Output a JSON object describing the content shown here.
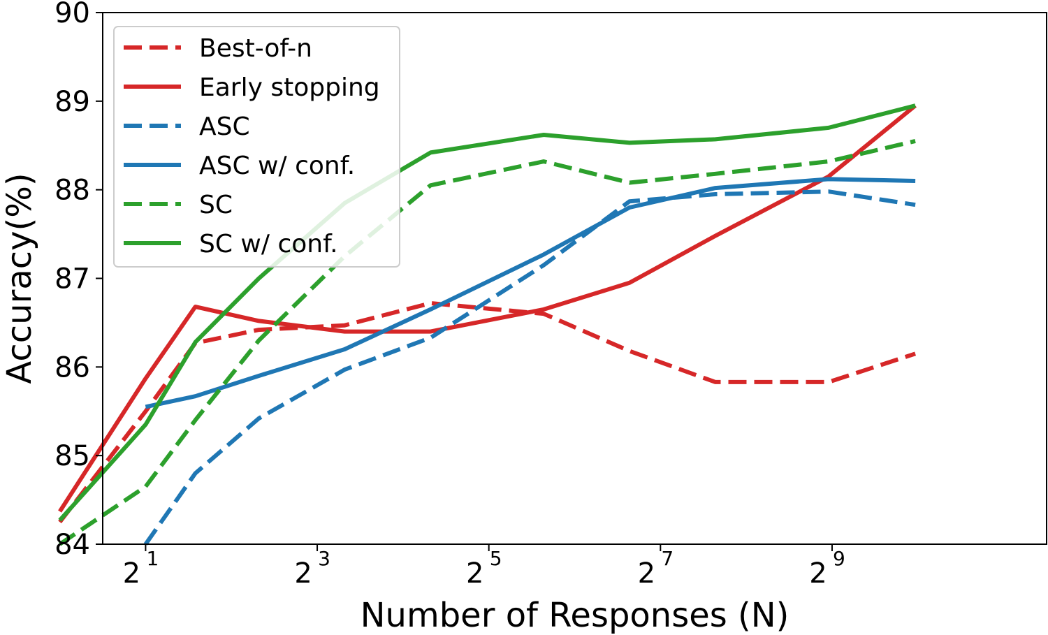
{
  "chart_data": {
    "type": "line",
    "xlabel": "Number of Responses (N)",
    "ylabel": "Accuracy(%)",
    "x_scale": "log2",
    "xlim_log2": [
      0.5,
      11.5
    ],
    "ylim": [
      84,
      90
    ],
    "x_ticks": [
      {
        "base": "2",
        "exp": "1",
        "log2": 1
      },
      {
        "base": "2",
        "exp": "3",
        "log2": 3
      },
      {
        "base": "2",
        "exp": "5",
        "log2": 5
      },
      {
        "base": "2",
        "exp": "7",
        "log2": 7
      },
      {
        "base": "2",
        "exp": "9",
        "log2": 9
      }
    ],
    "y_ticks": [
      "84",
      "85",
      "86",
      "87",
      "88",
      "89",
      "90"
    ],
    "legend_position": "top-left",
    "x_log2": [
      0,
      1,
      1.58,
      2.32,
      3.32,
      4.32,
      5.64,
      6.64,
      7.64,
      8.96,
      9.97
    ],
    "series": [
      {
        "name": "Best-of-n",
        "color": "#d62728",
        "dashed": true,
        "values": [
          84.25,
          85.5,
          86.27,
          86.42,
          86.47,
          86.72,
          86.6,
          86.18,
          85.83,
          85.83,
          86.15
        ]
      },
      {
        "name": "Early stopping",
        "color": "#d62728",
        "dashed": false,
        "values": [
          84.37,
          85.87,
          86.68,
          86.52,
          86.4,
          86.4,
          86.65,
          86.95,
          87.48,
          88.15,
          88.95
        ]
      },
      {
        "name": "ASC",
        "color": "#1f77b4",
        "dashed": true,
        "values": [
          null,
          84.0,
          84.8,
          85.42,
          85.97,
          86.33,
          87.15,
          87.87,
          87.95,
          87.98,
          87.83
        ]
      },
      {
        "name": "ASC w/ conf.",
        "color": "#1f77b4",
        "dashed": false,
        "values": [
          null,
          85.55,
          85.67,
          85.9,
          86.2,
          86.65,
          87.27,
          87.8,
          88.02,
          88.12,
          88.1
        ]
      },
      {
        "name": "SC",
        "color": "#2ca02c",
        "dashed": true,
        "values": [
          84.0,
          84.65,
          85.4,
          86.3,
          87.25,
          88.05,
          88.32,
          88.08,
          88.18,
          88.32,
          88.55
        ]
      },
      {
        "name": "SC w/ conf.",
        "color": "#2ca02c",
        "dashed": false,
        "values": [
          84.27,
          85.35,
          86.28,
          87.0,
          87.85,
          88.42,
          88.62,
          88.53,
          88.57,
          88.7,
          88.95
        ]
      }
    ]
  }
}
